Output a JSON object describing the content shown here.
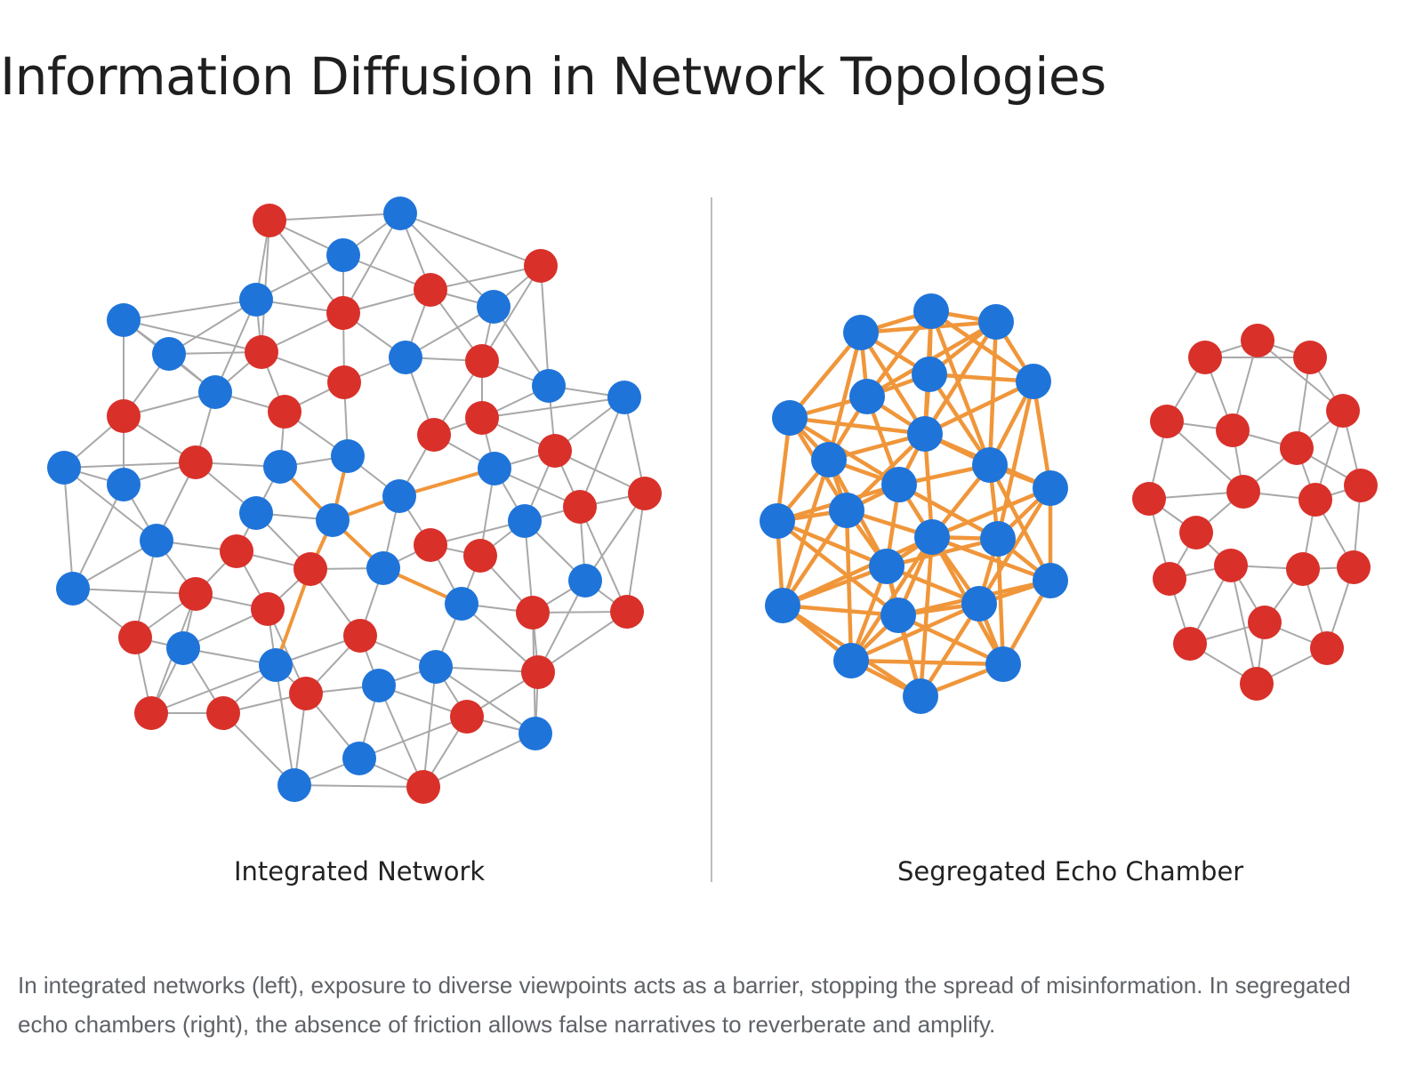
{
  "title": "Information Diffusion in Network Topologies",
  "panels": {
    "left_label": "Integrated Network",
    "right_label": "Segregated Echo Chamber"
  },
  "caption": "In integrated networks (left), exposure to diverse viewpoints acts as a barrier, stopping the spread of misinformation. In segregated echo chambers (right), the absence of friction allows false narratives to reverberate and amplify.",
  "colors": {
    "blue_node": "#1f74d9",
    "red_node": "#d9302a",
    "edge": "#a8a8a8",
    "spread_edge": "#f0963a",
    "divider": "#bdbdbd"
  }
}
